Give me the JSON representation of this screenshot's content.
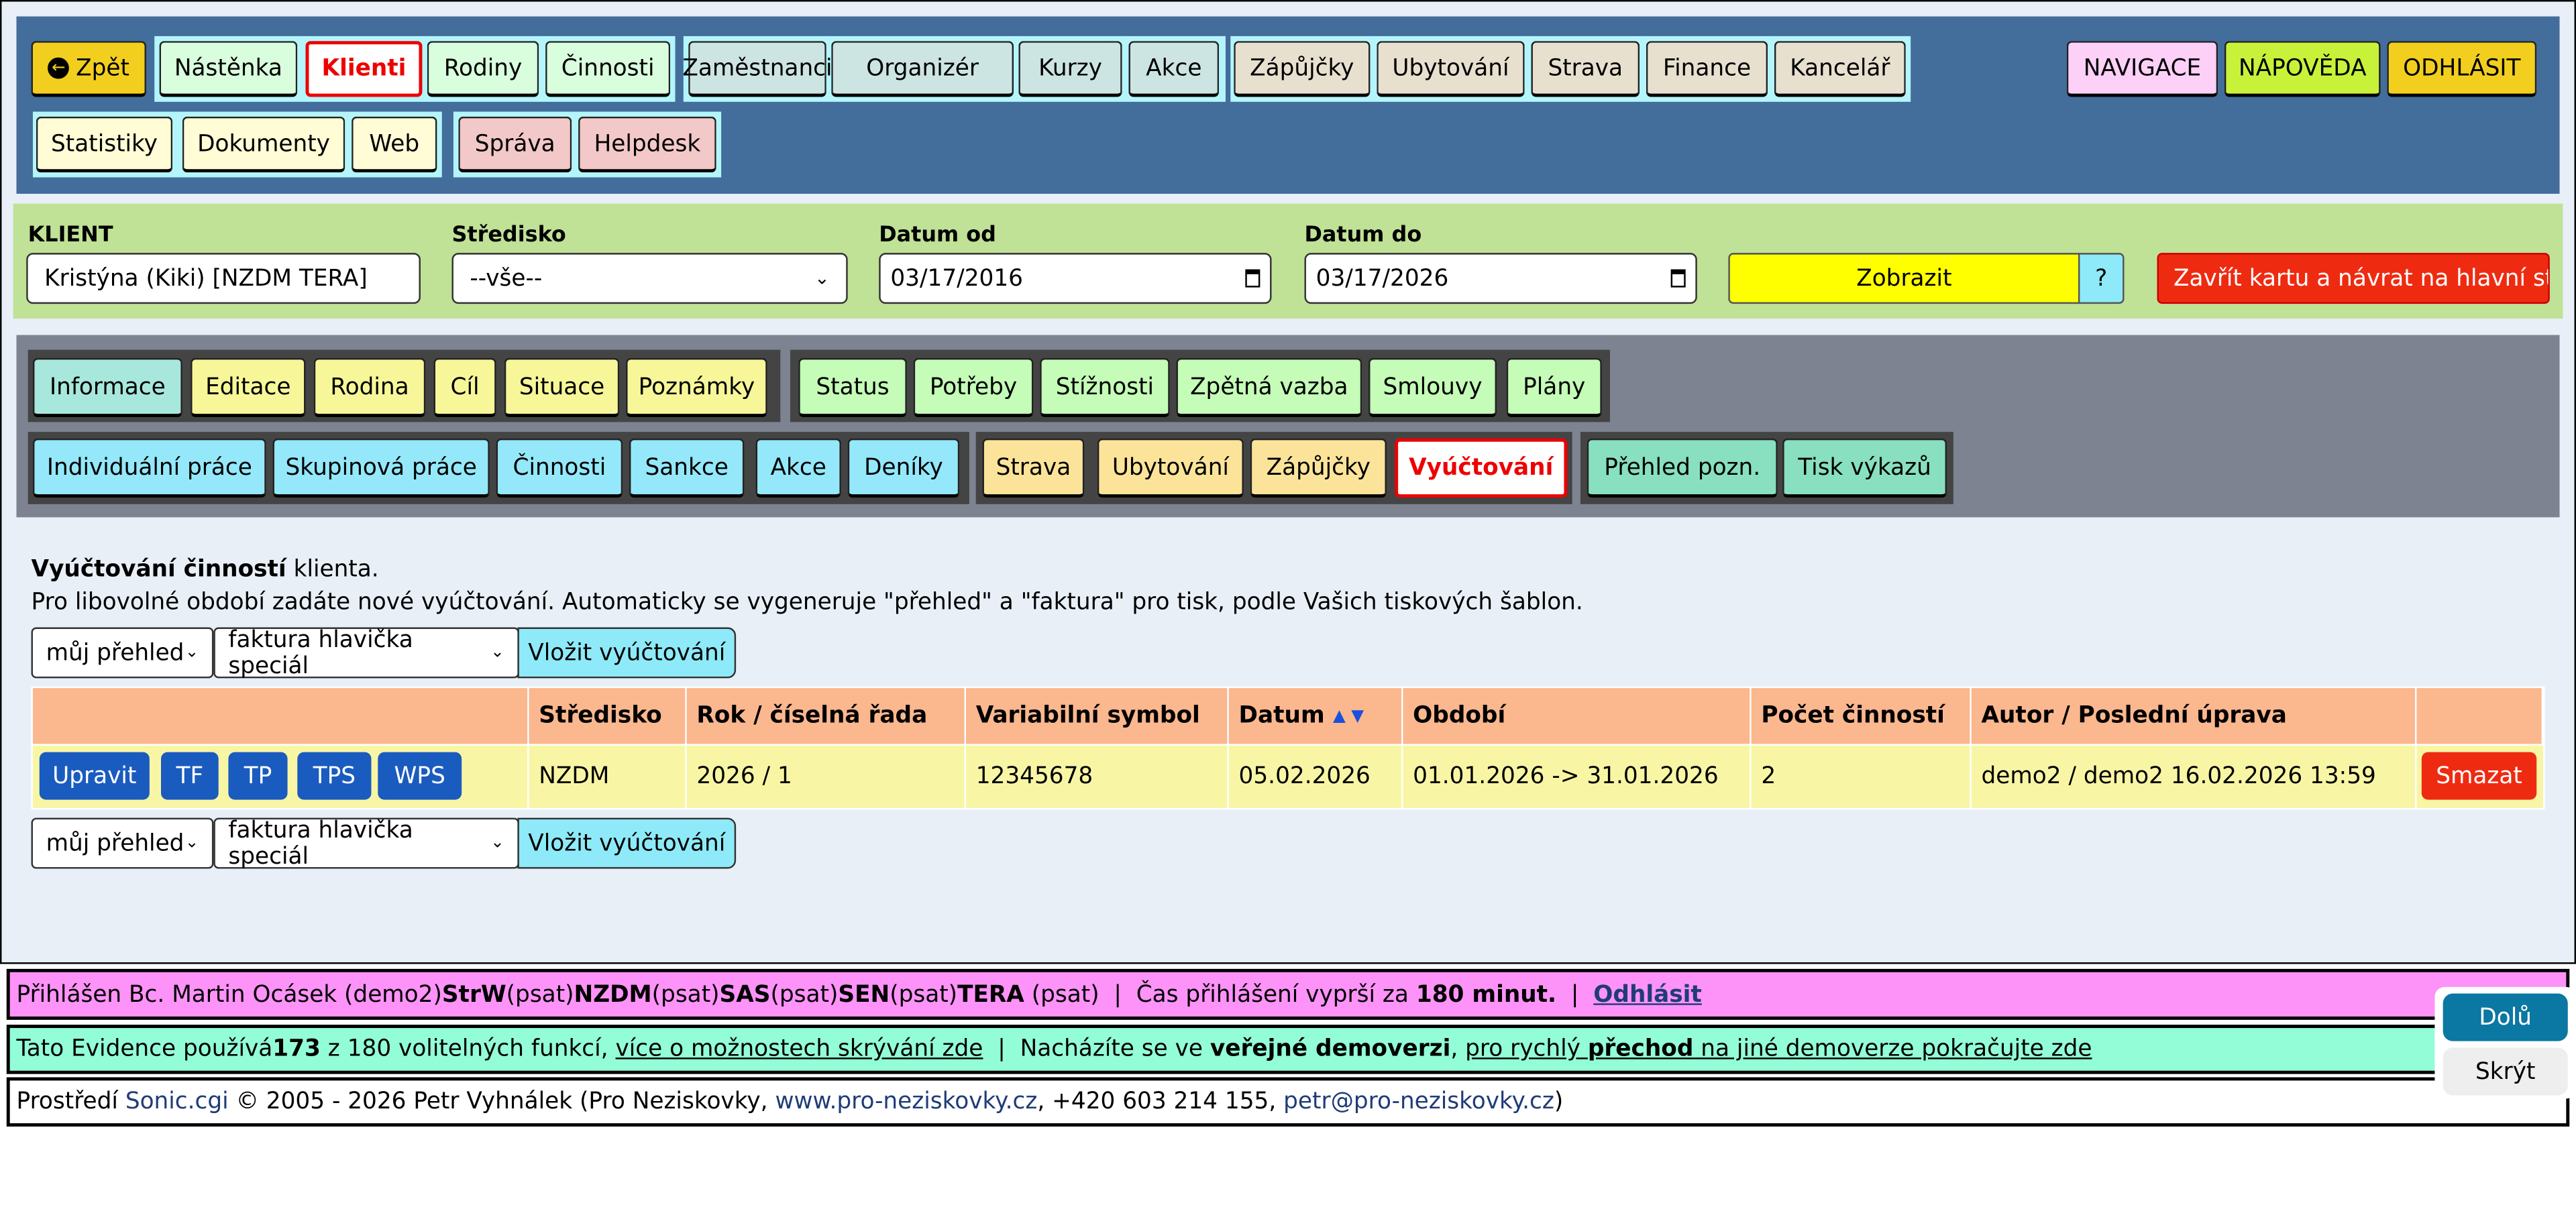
{
  "nav": {
    "back": "Zpět",
    "group1": [
      "Nástěnka",
      "Klienti",
      "Rodiny",
      "Činnosti"
    ],
    "group2": [
      "Zaměstnanci",
      "Organizér",
      "Kurzy",
      "Akce"
    ],
    "group3": [
      "Zápůjčky",
      "Ubytování",
      "Strava",
      "Finance",
      "Kancelář"
    ],
    "group4": [
      "Statistiky",
      "Dokumenty",
      "Web"
    ],
    "group5": [
      "Správa",
      "Helpdesk"
    ],
    "right": [
      "NAVIGACE",
      "NÁPOVĚDA",
      "ODHLÁSIT"
    ],
    "active": "Klienti"
  },
  "filter": {
    "client_label": "KLIENT",
    "client_value": "Kristýna (Kiki) [NZDM TERA]",
    "center_label": "Středisko",
    "center_value": "--vše--",
    "from_label": "Datum od",
    "from_value": "03/17/2016",
    "to_label": "Datum do",
    "to_value": "03/17/2026",
    "show": "Zobrazit",
    "help": "?",
    "close": "Zavřít kartu a návrat na hlavní stra"
  },
  "tabs": {
    "row1a": [
      "Informace",
      "Editace",
      "Rodina",
      "Cíl",
      "Situace",
      "Poznámky"
    ],
    "row1b": [
      "Status",
      "Potřeby",
      "Stížnosti",
      "Zpětná vazba",
      "Smlouvy",
      "Plány"
    ],
    "row2a": [
      "Individuální práce",
      "Skupinová práce",
      "Činnosti",
      "Sankce",
      "Akce",
      "Deníky"
    ],
    "row2b": [
      "Strava",
      "Ubytování",
      "Zápůjčky",
      "Vyúčtování"
    ],
    "row2c": [
      "Přehled pozn.",
      "Tisk výkazů"
    ],
    "active": "Vyúčtování"
  },
  "main": {
    "title_bold": "Vyúčtování činností",
    "title_rest": " klienta.",
    "desc": "Pro libovolné období zadáte nové vyúčtování. Automaticky se vygeneruje \"přehled\" a \"faktura\" pro tisk, podle Vašich tiskových šablon.",
    "select1": "můj přehled",
    "select2": "faktura hlavička speciál",
    "insert": "Vložit vyúčtování"
  },
  "table": {
    "headers": [
      "",
      "Středisko",
      "Rok / číselná řada",
      "Variabilní symbol",
      "Datum",
      "Období",
      "Počet činností",
      "Autor / Poslední úprava",
      ""
    ],
    "row_buttons": [
      "Upravit",
      "TF",
      "TP",
      "TPS",
      "WPS"
    ],
    "row": [
      "NZDM",
      "2026 / 1",
      "12345678",
      "05.02.2026",
      "01.01.2026 -> 31.01.2026",
      "2",
      "demo2 / demo2 16.02.2026 13:59"
    ],
    "delete": "Smazat"
  },
  "footer": {
    "l1": {
      "a": "Přihlášen Bc. Martin Ocásek (demo2) ",
      "b1": "StrW",
      "p": " (psat) ",
      "b2": "NZDM",
      "b3": "SAS",
      "b4": "SEN",
      "b5": "TERA",
      "c": " (psat)  |  Čas přihlášení vyprší za ",
      "d": "180 minut.",
      "e": "  |  ",
      "link": "Odhlásit"
    },
    "l2": {
      "a": "Tato Evidence používá ",
      "b": "173",
      "c": " z 180 volitelných funkcí, ",
      "link1": "více o možnostech skrývání zde",
      "d": "  |  Nacházíte se ve ",
      "e": "veřejné demoverzi",
      "f": ", ",
      "link2a": "pro rychlý ",
      "link2b": "přechod",
      "link2c": " na jiné demoverze pokračujte zde"
    },
    "l3": {
      "a": "Prostředí ",
      "sonic": "Sonic.cgi",
      "b": " © 2005 - 2026 Petr Vyhnálek (Pro Neziskovky, ",
      "web": "www.pro-neziskovky.cz",
      "c": ", +420 603 214 155, ",
      "mail": "petr@pro-neziskovky.cz",
      "d": ")"
    }
  },
  "float": {
    "down": "Dolů",
    "hide": "Skrýt"
  }
}
